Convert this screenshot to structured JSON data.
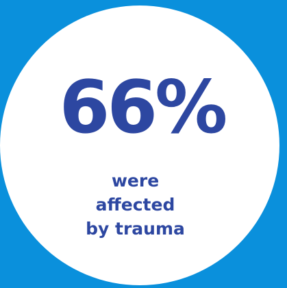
{
  "colors": {
    "background": "#0a90dc",
    "circle": "#ffffff",
    "text": "#2d47a1"
  },
  "stat": {
    "value": "66%"
  },
  "caption": {
    "lines": [
      "were",
      "affected",
      "by trauma"
    ]
  }
}
